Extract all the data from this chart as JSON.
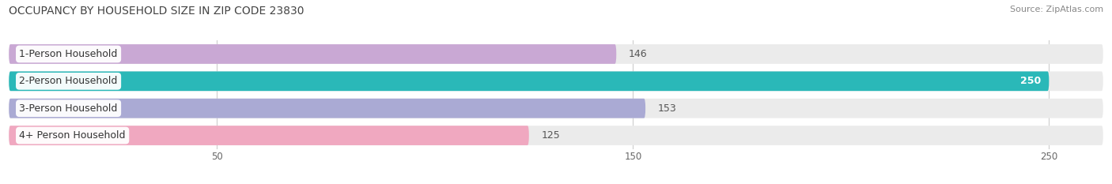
{
  "title": "OCCUPANCY BY HOUSEHOLD SIZE IN ZIP CODE 23830",
  "source": "Source: ZipAtlas.com",
  "categories": [
    "1-Person Household",
    "2-Person Household",
    "3-Person Household",
    "4+ Person Household"
  ],
  "values": [
    146,
    250,
    153,
    125
  ],
  "bar_colors": [
    "#c9a8d4",
    "#2ab8b8",
    "#aaaad4",
    "#f0a8c0"
  ],
  "label_colors": [
    "#555555",
    "#ffffff",
    "#555555",
    "#555555"
  ],
  "value_inside": [
    false,
    true,
    false,
    false
  ],
  "xlim": [
    0,
    263
  ],
  "xticks": [
    50,
    150,
    250
  ],
  "background_color": "#ffffff",
  "bar_bg_color": "#ebebeb",
  "title_fontsize": 10,
  "label_fontsize": 9,
  "value_fontsize": 9,
  "source_fontsize": 8
}
